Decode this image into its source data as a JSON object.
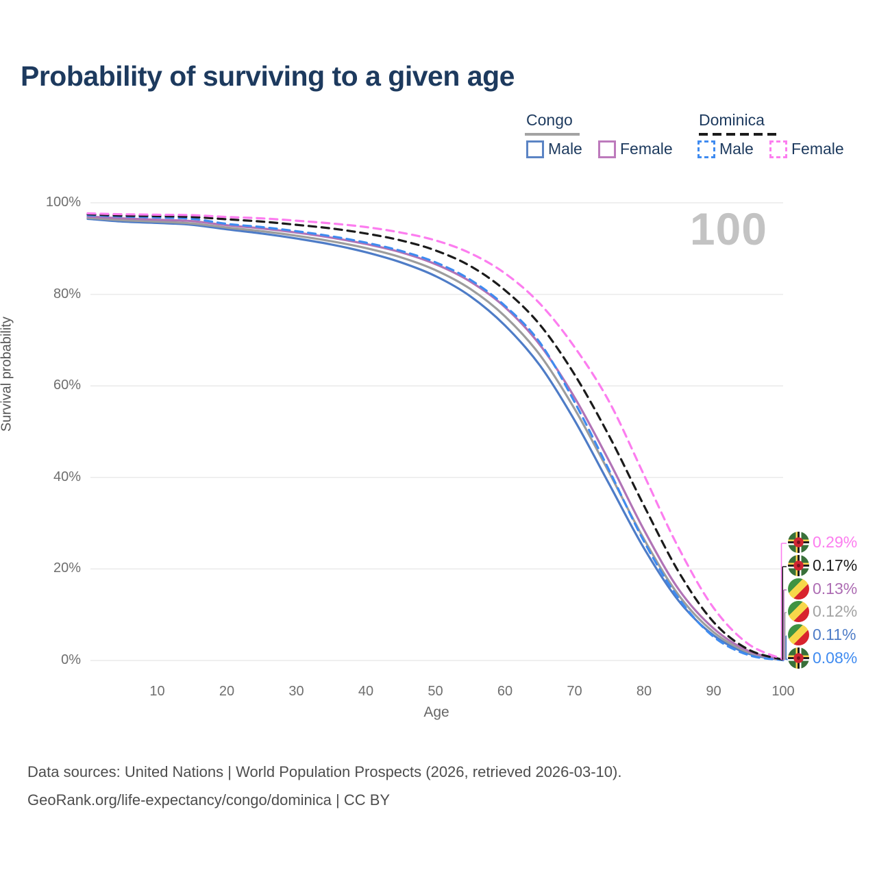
{
  "title": "Probability of surviving to a given age",
  "legend": {
    "groups": [
      {
        "label": "Congo",
        "line_style": "solid",
        "line_color": "#a3a3a3",
        "items": [
          {
            "label": "Male",
            "color": "#4e7cc7",
            "dashed": false
          },
          {
            "label": "Female",
            "color": "#b173b6",
            "dashed": false
          }
        ]
      },
      {
        "label": "Dominica",
        "line_style": "dashed",
        "line_color": "#1b1b1b",
        "items": [
          {
            "label": "Male",
            "color": "#3f8bf0",
            "dashed": true
          },
          {
            "label": "Female",
            "color": "#fc7def",
            "dashed": true
          }
        ]
      }
    ]
  },
  "chart_data": {
    "type": "line",
    "title": "Probability of surviving to a given age",
    "xlabel": "Age",
    "ylabel": "Survival probability",
    "xlim": [
      0,
      100
    ],
    "ylim": [
      0,
      100
    ],
    "grid": "horizontal",
    "age_counter": "100",
    "x_ticks": [
      "10",
      "20",
      "30",
      "40",
      "50",
      "60",
      "70",
      "80",
      "90",
      "100"
    ],
    "x_tick_values": [
      10,
      20,
      30,
      40,
      50,
      60,
      70,
      80,
      90,
      100
    ],
    "y_ticks": [
      "0%",
      "20%",
      "40%",
      "60%",
      "80%",
      "100%"
    ],
    "y_tick_values": [
      0,
      20,
      40,
      60,
      80,
      100
    ],
    "x": [
      0,
      5,
      10,
      15,
      20,
      25,
      30,
      35,
      40,
      45,
      50,
      55,
      60,
      65,
      70,
      75,
      80,
      85,
      90,
      95,
      100
    ],
    "series": [
      {
        "name": "Congo Male",
        "country": "Congo",
        "sex": "Male",
        "color": "#4e7cc7",
        "dashed": false,
        "values": [
          96.5,
          95.9,
          95.6,
          95.2,
          94.2,
          93.3,
          92.2,
          90.9,
          89.2,
          87.0,
          84.0,
          79.6,
          73.2,
          64.5,
          52.5,
          38.5,
          24.5,
          13.0,
          5.5,
          1.5,
          0.11
        ]
      },
      {
        "name": "Congo Both sexes",
        "country": "Congo",
        "sex": "Both",
        "color": "#9d9d9d",
        "dashed": false,
        "values": [
          96.7,
          96.2,
          95.9,
          95.5,
          94.6,
          93.8,
          92.8,
          91.6,
          90.1,
          88.1,
          85.3,
          81.2,
          75.2,
          66.8,
          55.0,
          41.0,
          26.5,
          14.2,
          6.2,
          1.8,
          0.12
        ]
      },
      {
        "name": "Congo Female",
        "country": "Congo",
        "sex": "Female",
        "color": "#b173b6",
        "dashed": false,
        "values": [
          97.0,
          96.6,
          96.3,
          96.0,
          95.1,
          94.4,
          93.5,
          92.4,
          91.0,
          89.2,
          86.6,
          82.8,
          77.2,
          69.0,
          57.5,
          43.5,
          28.5,
          15.5,
          7.0,
          2.1,
          0.13
        ]
      },
      {
        "name": "Dominica Male",
        "country": "Dominica",
        "sex": "Male",
        "color": "#3f8bf0",
        "dashed": true,
        "values": [
          97.3,
          97.0,
          96.8,
          96.5,
          95.4,
          94.7,
          93.8,
          92.7,
          91.3,
          89.5,
          87.0,
          83.2,
          77.5,
          69.5,
          56.5,
          41.5,
          26.0,
          13.5,
          5.2,
          1.2,
          0.08
        ]
      },
      {
        "name": "Dominica Both sexes",
        "country": "Dominica",
        "sex": "Both",
        "color": "#1b1b1b",
        "dashed": true,
        "values": [
          97.5,
          97.2,
          97.1,
          96.9,
          96.4,
          95.9,
          95.2,
          94.4,
          93.3,
          91.8,
          89.6,
          86.2,
          80.9,
          73.4,
          62.5,
          49.0,
          33.8,
          19.3,
          8.4,
          2.4,
          0.17
        ]
      },
      {
        "name": "Dominica Female",
        "country": "Dominica",
        "sex": "Female",
        "color": "#fc7def",
        "dashed": true,
        "values": [
          97.7,
          97.5,
          97.4,
          97.3,
          96.9,
          96.6,
          96.1,
          95.5,
          94.7,
          93.5,
          91.8,
          89.0,
          84.6,
          78.0,
          68.5,
          56.5,
          40.5,
          24.5,
          11.5,
          3.6,
          0.29
        ]
      }
    ],
    "end_labels": [
      {
        "value": "0.29%",
        "color": "#fc7def",
        "flag": "dominica",
        "series_index": 5
      },
      {
        "value": "0.17%",
        "color": "#1c1c1c",
        "flag": "dominica",
        "series_index": 4
      },
      {
        "value": "0.13%",
        "color": "#ad6cb3",
        "flag": "congo",
        "series_index": 2
      },
      {
        "value": "0.12%",
        "color": "#a3a3a3",
        "flag": "congo",
        "series_index": 1
      },
      {
        "value": "0.11%",
        "color": "#4e7cc7",
        "flag": "congo",
        "series_index": 0
      },
      {
        "value": "0.08%",
        "color": "#3f8bf0",
        "flag": "dominica",
        "series_index": 3
      }
    ]
  },
  "footer": {
    "line1": "Data sources: United Nations | World Population Prospects (2026, retrieved 2026-03-10).",
    "line2": "GeoRank.org/life-expectancy/congo/dominica | CC BY"
  }
}
